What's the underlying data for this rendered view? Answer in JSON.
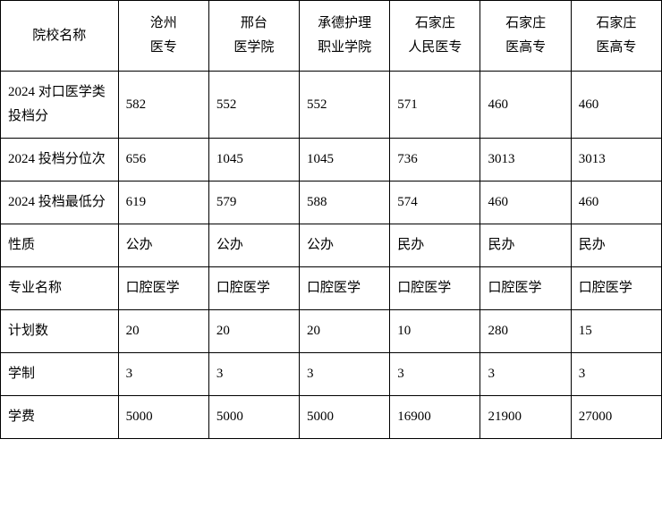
{
  "table": {
    "rowLabels": {
      "schoolName": "院校名称",
      "admissionScore": "2024 对口医学类投档分",
      "rank": "2024 投档分位次",
      "minScore": "2024 投档最低分",
      "nature": "性质",
      "majorName": "专业名称",
      "planCount": "计划数",
      "duration": "学制",
      "tuition": "学费"
    },
    "colleges": [
      {
        "name_line1": "沧州",
        "name_line2": "医专",
        "admissionScore": "582",
        "rank": "656",
        "minScore": "619",
        "nature": "公办",
        "majorName": "口腔医学",
        "planCount": "20",
        "duration": "3",
        "tuition": "5000"
      },
      {
        "name_line1": "邢台",
        "name_line2": "医学院",
        "admissionScore": "552",
        "rank": "1045",
        "minScore": "579",
        "nature": "公办",
        "majorName": "口腔医学",
        "planCount": "20",
        "duration": "3",
        "tuition": "5000"
      },
      {
        "name_line1": "承德护理",
        "name_line2": "职业学院",
        "admissionScore": "552",
        "rank": "1045",
        "minScore": "588",
        "nature": "公办",
        "majorName": "口腔医学",
        "planCount": "20",
        "duration": "3",
        "tuition": "5000"
      },
      {
        "name_line1": "石家庄",
        "name_line2": "人民医专",
        "admissionScore": "571",
        "rank": "736",
        "minScore": "574",
        "nature": "民办",
        "majorName": "口腔医学",
        "planCount": "10",
        "duration": "3",
        "tuition": "16900"
      },
      {
        "name_line1": "石家庄",
        "name_line2": "医高专",
        "admissionScore": "460",
        "rank": "3013",
        "minScore": "460",
        "nature": "民办",
        "majorName": "口腔医学",
        "planCount": "280",
        "duration": "3",
        "tuition": "21900"
      },
      {
        "name_line1": "石家庄",
        "name_line2": "医高专",
        "admissionScore": "460",
        "rank": "3013",
        "minScore": "460",
        "nature": "民办",
        "majorName": "口腔医学",
        "planCount": "15",
        "duration": "3",
        "tuition": "27000"
      }
    ]
  }
}
